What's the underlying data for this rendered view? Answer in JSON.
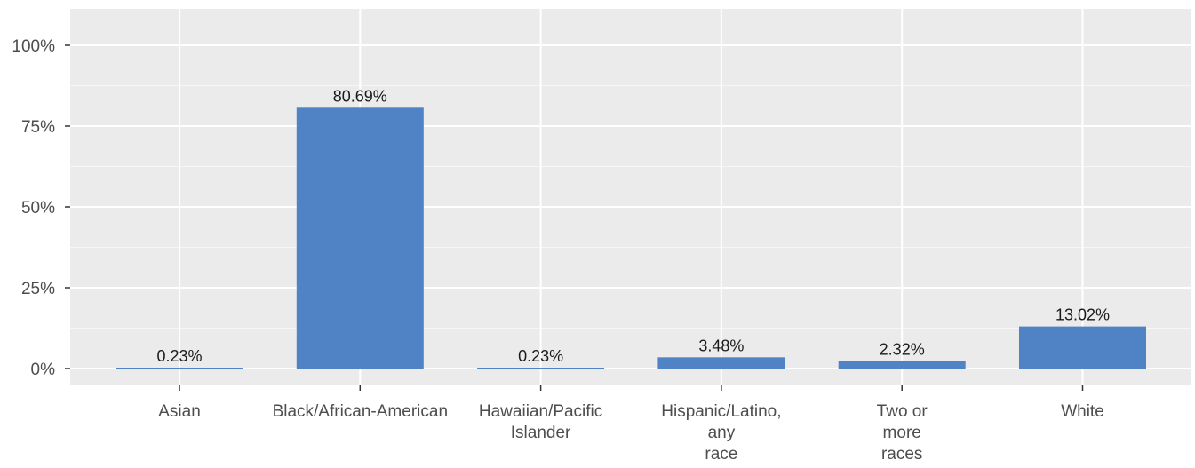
{
  "colors": {
    "panel_background": "#ebebeb",
    "grid_major": "#ffffff",
    "bar_fill": "#4f83c5",
    "text": "#1a1a1a",
    "axis_tick_text": "#4d4d4d",
    "axis_tick_line": "#333333"
  },
  "chart_data": {
    "type": "bar",
    "categories": [
      [
        "Asian"
      ],
      [
        "Black/African-American"
      ],
      [
        "Hawaiian/Pacific",
        "Islander"
      ],
      [
        "Hispanic/Latino,",
        "any",
        "race"
      ],
      [
        "Two or",
        "more",
        "races"
      ],
      [
        "White"
      ]
    ],
    "values": [
      0.23,
      80.69,
      0.23,
      3.48,
      2.32,
      13.02
    ],
    "data_labels": [
      "0.23%",
      "80.69%",
      "0.23%",
      "3.48%",
      "2.32%",
      "13.02%"
    ],
    "y_ticks": [
      0,
      25,
      50,
      75,
      100
    ],
    "y_tick_labels": [
      "0%",
      "25%",
      "50%",
      "75%",
      "100%"
    ],
    "ylim": [
      -5,
      111
    ],
    "title": "",
    "xlabel": "",
    "ylabel": "",
    "grid": true,
    "legend": "none"
  }
}
